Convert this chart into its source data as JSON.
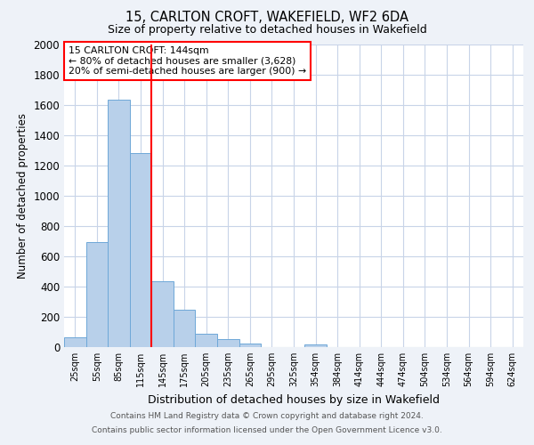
{
  "title": "15, CARLTON CROFT, WAKEFIELD, WF2 6DA",
  "subtitle": "Size of property relative to detached houses in Wakefield",
  "xlabel": "Distribution of detached houses by size in Wakefield",
  "ylabel": "Number of detached properties",
  "bar_labels": [
    "25sqm",
    "55sqm",
    "85sqm",
    "115sqm",
    "145sqm",
    "175sqm",
    "205sqm",
    "235sqm",
    "265sqm",
    "295sqm",
    "325sqm",
    "354sqm",
    "384sqm",
    "414sqm",
    "444sqm",
    "474sqm",
    "504sqm",
    "534sqm",
    "564sqm",
    "594sqm",
    "624sqm"
  ],
  "bar_heights": [
    65,
    695,
    1635,
    1285,
    435,
    250,
    90,
    52,
    25,
    0,
    0,
    15,
    0,
    0,
    0,
    0,
    0,
    0,
    0,
    0,
    0
  ],
  "bar_color": "#b8d0ea",
  "bar_edge_color": "#6ea8d8",
  "ylim": [
    0,
    2000
  ],
  "yticks": [
    0,
    200,
    400,
    600,
    800,
    1000,
    1200,
    1400,
    1600,
    1800,
    2000
  ],
  "vline_position": 3.5,
  "vline_color": "red",
  "annotation_title": "15 CARLTON CROFT: 144sqm",
  "annotation_line1": "← 80% of detached houses are smaller (3,628)",
  "annotation_line2": "20% of semi-detached houses are larger (900) →",
  "annotation_box_color": "white",
  "annotation_box_edge_color": "red",
  "footer_line1": "Contains HM Land Registry data © Crown copyright and database right 2024.",
  "footer_line2": "Contains public sector information licensed under the Open Government Licence v3.0.",
  "background_color": "#eef2f8",
  "plot_bg_color": "white",
  "grid_color": "#c8d4e8"
}
